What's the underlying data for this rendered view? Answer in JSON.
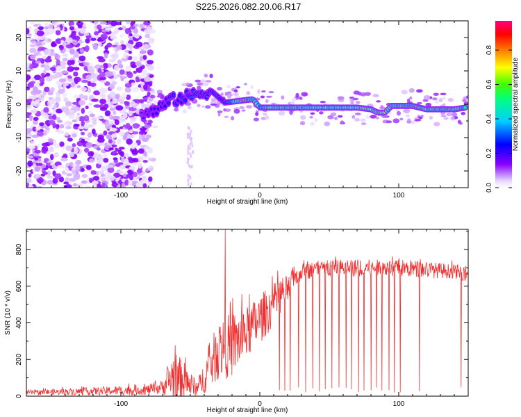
{
  "title": "S225.2026.082.20.06.R17",
  "colors": {
    "snr_line": "#f03030",
    "axis": "#000000"
  },
  "chart_data": [
    {
      "type": "heatmap",
      "name": "spectrogram",
      "xlabel": "Height of straight line (km)",
      "ylabel": "Frequency (Hz)",
      "xlim": [
        -168,
        150
      ],
      "ylim": [
        -25,
        25
      ],
      "xticks": [
        -100,
        0,
        100
      ],
      "yticks": [
        -20,
        -10,
        0,
        10,
        20
      ],
      "colorbar": {
        "label": "Normalized spectral amplitude",
        "range": [
          0.0,
          0.97
        ],
        "ticks": [
          0.0,
          0.2,
          0.4,
          0.6,
          0.8
        ],
        "colormap": "rainbow: white-lavender(0) - purple - blue - cyan - green - yellow - orange - red - magenta(0.97)"
      },
      "ridge": {
        "description": "dominant tone frequency versus height",
        "x": [
          -85,
          -75,
          -65,
          -55,
          -45,
          -35,
          -25,
          -15,
          -5,
          0,
          10,
          20,
          30,
          40,
          50,
          60,
          70,
          80,
          85,
          90,
          95,
          100,
          110,
          120,
          130,
          140,
          148
        ],
        "y": [
          -3,
          -2,
          1,
          2,
          3,
          4,
          0.5,
          1,
          1.5,
          -1,
          -1,
          -1,
          -1,
          -1,
          -1,
          -1,
          -1,
          -1.5,
          -2.5,
          -2.5,
          -0.5,
          -0.5,
          -0.5,
          -1.5,
          -1.5,
          -1.5,
          -1
        ],
        "peak_amplitude": [
          0.2,
          0.25,
          0.3,
          0.3,
          0.35,
          0.3,
          0.3,
          0.85,
          0.95,
          0.6,
          0.8,
          0.85,
          0.9,
          0.75,
          0.7,
          0.7,
          0.75,
          0.8,
          0.85,
          0.7,
          0.95,
          0.9,
          0.95,
          0.85,
          0.9,
          0.9,
          0.6
        ]
      },
      "noise_region_x": [
        -168,
        -85
      ]
    },
    {
      "type": "line",
      "name": "snr",
      "xlabel": "Height of straight line (km)",
      "ylabel": "SNR (10 * v/v)",
      "xlim": [
        -168,
        150
      ],
      "ylim": [
        0,
        910
      ],
      "xticks": [
        -100,
        0,
        100
      ],
      "yticks": [
        0,
        200,
        400,
        600,
        800
      ],
      "envelope": {
        "x": [
          -168,
          -130,
          -100,
          -80,
          -70,
          -62,
          -55,
          -45,
          -38,
          -30,
          -20,
          -10,
          0,
          10,
          20,
          25,
          30,
          40,
          60,
          80,
          100,
          120,
          140,
          150
        ],
        "median": [
          20,
          25,
          30,
          35,
          50,
          110,
          90,
          40,
          130,
          250,
          280,
          340,
          420,
          500,
          600,
          650,
          680,
          690,
          700,
          700,
          700,
          690,
          680,
          670
        ],
        "max": [
          40,
          55,
          70,
          80,
          110,
          330,
          250,
          100,
          300,
          500,
          560,
          560,
          630,
          680,
          720,
          740,
          750,
          760,
          775,
          770,
          775,
          760,
          740,
          740
        ]
      },
      "spikes": [
        {
          "x": -25,
          "y": 910
        }
      ],
      "dropouts_x": [
        10,
        14,
        18,
        22,
        28,
        33,
        38,
        43,
        47,
        52,
        57,
        62,
        66,
        71,
        75,
        80,
        84,
        88,
        93,
        97,
        101,
        115,
        145
      ]
    }
  ]
}
